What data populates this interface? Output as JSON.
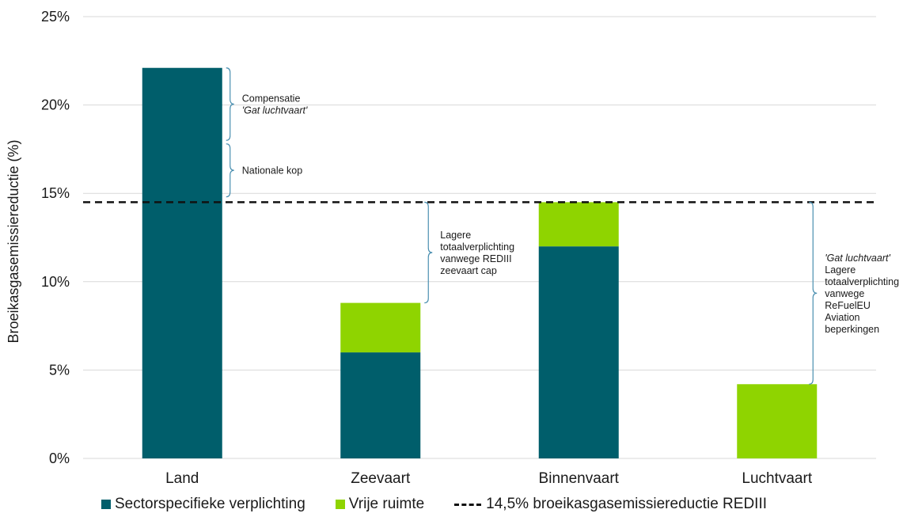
{
  "chart_data": {
    "type": "bar",
    "stacked": true,
    "title": "",
    "ylabel": "Broeikasgasemissiereductie (%)",
    "xlabel": "",
    "ylim": [
      0,
      25
    ],
    "yticks": [
      "0%",
      "5%",
      "10%",
      "15%",
      "20%",
      "25%"
    ],
    "ytick_values": [
      0,
      5,
      10,
      15,
      20,
      25
    ],
    "grid": "horizontal",
    "categories": [
      "Land",
      "Zeevaart",
      "Binnenvaart",
      "Luchtvaart"
    ],
    "series": [
      {
        "name": "Sectorspecifieke verplichting",
        "color": "#005e6b",
        "values": [
          22.1,
          6.0,
          12.0,
          0
        ]
      },
      {
        "name": "Vrije ruimte",
        "color": "#8fd400",
        "values": [
          0,
          2.8,
          2.5,
          4.2
        ]
      }
    ],
    "reference_line": {
      "name": "14,5% broeikasgasemissiereductie REDIII",
      "value": 14.5,
      "style": "dashed",
      "color": "#111111"
    },
    "annotations": [
      {
        "category": "Land",
        "from": 18.0,
        "to": 22.1,
        "lines": [
          "Compensatie",
          "'Gat luchtvaart'"
        ],
        "italic_line": 1
      },
      {
        "category": "Land",
        "from": 14.8,
        "to": 17.8,
        "lines": [
          "Nationale kop"
        ]
      },
      {
        "category": "Zeevaart",
        "from": 8.8,
        "to": 14.5,
        "lines": [
          "Lagere",
          "totaalverplichting",
          "vanwege REDIII",
          "zeevaart cap"
        ]
      },
      {
        "category": "Luchtvaart",
        "from": 4.2,
        "to": 14.5,
        "lines": [
          "'Gat luchtvaart'",
          "Lagere",
          "totaalverplichting",
          "vanwege",
          "ReFuelEU",
          "Aviation",
          "beperkingen"
        ],
        "italic_line": 0
      }
    ],
    "legend_position": "bottom",
    "brace_color": "#4a8fb0",
    "grid_color": "#d9d9d9"
  }
}
